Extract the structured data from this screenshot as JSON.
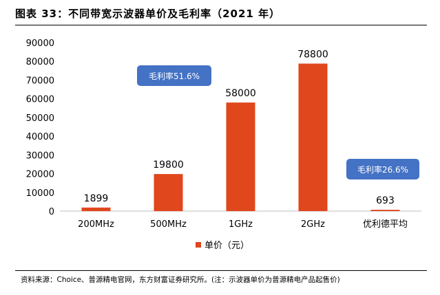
{
  "figure": {
    "title": "图表 33：不同带宽示波器单价及毛利率（2021 年）",
    "source": "资料来源：Choice、普源精电官网，东方财富证券研究所。(注：示波器单价为普源精电产品起售价)"
  },
  "colors": {
    "bar": "#E0471D",
    "note_bg": "#4472C4",
    "axis": "#BFBFBF"
  },
  "chart_data": {
    "type": "bar",
    "title": "",
    "categories": [
      "200MHz",
      "500MHz",
      "1GHz",
      "2GHz",
      "优利德平均"
    ],
    "series": [
      {
        "name": "单价（元）",
        "values": [
          1899,
          19800,
          58000,
          78800,
          693
        ]
      }
    ],
    "data_labels": [
      "1899",
      "19800",
      "58000",
      "78800",
      "693"
    ],
    "ylim": [
      0,
      90000
    ],
    "yticks": [
      0,
      10000,
      20000,
      30000,
      40000,
      50000,
      60000,
      70000,
      80000,
      90000
    ],
    "ytick_labels": [
      "0",
      "10000",
      "20000",
      "30000",
      "40000",
      "50000",
      "60000",
      "70000",
      "80000",
      "90000"
    ],
    "grid": false,
    "legend": {
      "position": "bottom",
      "label": "单价（元）"
    },
    "annotations": [
      {
        "text": "毛利率51.6%",
        "near": "500MHz"
      },
      {
        "text": "毛利率26.6%",
        "near": "优利德平均"
      }
    ]
  }
}
